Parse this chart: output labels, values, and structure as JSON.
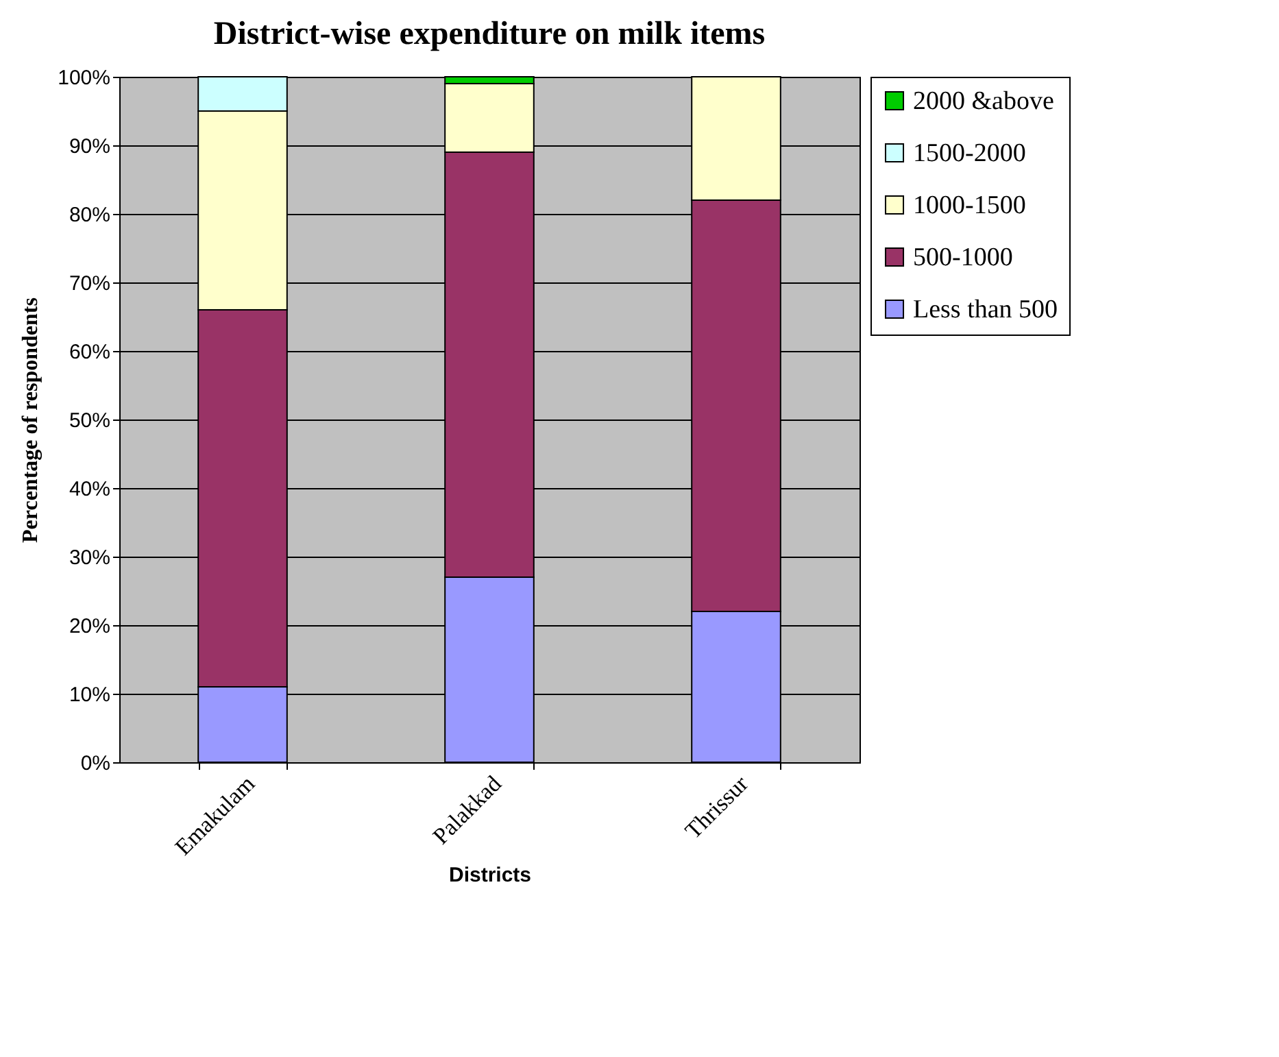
{
  "chart_data": {
    "type": "bar",
    "title": "District-wise expenditure on milk items",
    "xlabel": "Districts",
    "ylabel": "Percentage of respondents",
    "categories": [
      "Emakulam",
      "Palakkad",
      "Thrissur"
    ],
    "stacked": true,
    "grid": "y",
    "legend": "right",
    "ylim": [
      0,
      100
    ],
    "yticks": [
      {
        "value": 0,
        "label": "0%"
      },
      {
        "value": 10,
        "label": "10%"
      },
      {
        "value": 20,
        "label": "20%"
      },
      {
        "value": 30,
        "label": "30%"
      },
      {
        "value": 40,
        "label": "40%"
      },
      {
        "value": 50,
        "label": "50%"
      },
      {
        "value": 60,
        "label": "60%"
      },
      {
        "value": 70,
        "label": "70%"
      },
      {
        "value": 80,
        "label": "80%"
      },
      {
        "value": 90,
        "label": "90%"
      },
      {
        "value": 100,
        "label": "100%"
      }
    ],
    "series": [
      {
        "name": "Less than 500",
        "color": "#9999ff",
        "values": [
          11,
          27,
          22
        ]
      },
      {
        "name": "500-1000",
        "color": "#993366",
        "values": [
          55,
          62,
          60
        ]
      },
      {
        "name": "1000-1500",
        "color": "#ffffcc",
        "values": [
          29,
          10,
          18
        ]
      },
      {
        "name": "1500-2000",
        "color": "#ccffff",
        "values": [
          5,
          null,
          null
        ]
      },
      {
        "name": "2000 &above",
        "color": "#00cc00",
        "values": [
          null,
          1,
          null
        ]
      }
    ]
  }
}
